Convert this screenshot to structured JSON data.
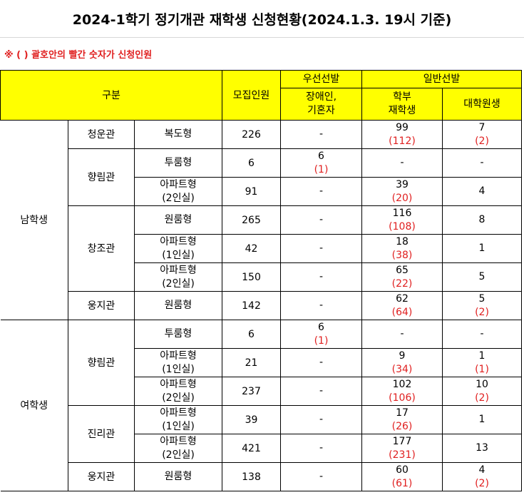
{
  "title": "2024-1학기 정기개관 재학생 신청현황(2024.1.3. 19시 기준)",
  "note": "※ ( ) 괄호안의 빨간 숫자가 신청인원",
  "headers": {
    "category": "구분",
    "capacity": "모집인원",
    "priority": "우선선발",
    "priority_sub": [
      "장애인,",
      "기혼자"
    ],
    "general": "일반선발",
    "undergrad": [
      "학부",
      "재학생"
    ],
    "grad": "대학원생"
  },
  "groups": [
    {
      "gender": "남학생",
      "halls": [
        {
          "hall": "청운관",
          "rows": [
            {
              "type": [
                "복도형"
              ],
              "capacity": "226",
              "priority": "-",
              "priority_applied": "",
              "undergrad": "99",
              "undergrad_applied": "(112)",
              "grad": "7",
              "grad_applied": "(2)"
            }
          ]
        },
        {
          "hall": "향림관",
          "rows": [
            {
              "type": [
                "투룸형"
              ],
              "capacity": "6",
              "priority": "6",
              "priority_applied": "(1)",
              "undergrad": "-",
              "undergrad_applied": "",
              "grad": "-",
              "grad_applied": ""
            },
            {
              "type": [
                "아파트형",
                "(2인실)"
              ],
              "capacity": "91",
              "priority": "-",
              "priority_applied": "",
              "undergrad": "39",
              "undergrad_applied": "(20)",
              "grad": "4",
              "grad_applied": ""
            }
          ]
        },
        {
          "hall": "창조관",
          "rows": [
            {
              "type": [
                "원룸형"
              ],
              "capacity": "265",
              "priority": "-",
              "priority_applied": "",
              "undergrad": "116",
              "undergrad_applied": "(108)",
              "grad": "8",
              "grad_applied": ""
            },
            {
              "type": [
                "아파트형",
                "(1인실)"
              ],
              "capacity": "42",
              "priority": "-",
              "priority_applied": "",
              "undergrad": "18",
              "undergrad_applied": "(38)",
              "grad": "1",
              "grad_applied": ""
            },
            {
              "type": [
                "아파트형",
                "(2인실)"
              ],
              "capacity": "150",
              "priority": "-",
              "priority_applied": "",
              "undergrad": "65",
              "undergrad_applied": "(22)",
              "grad": "5",
              "grad_applied": ""
            }
          ]
        },
        {
          "hall": "웅지관",
          "rows": [
            {
              "type": [
                "원룸형"
              ],
              "capacity": "142",
              "priority": "-",
              "priority_applied": "",
              "undergrad": "62",
              "undergrad_applied": "(64)",
              "grad": "5",
              "grad_applied": "(2)"
            }
          ]
        }
      ]
    },
    {
      "gender": "여학생",
      "halls": [
        {
          "hall": "향림관",
          "rows": [
            {
              "type": [
                "투룸형"
              ],
              "capacity": "6",
              "priority": "6",
              "priority_applied": "(1)",
              "undergrad": "-",
              "undergrad_applied": "",
              "grad": "-",
              "grad_applied": ""
            },
            {
              "type": [
                "아파트형",
                "(1인실)"
              ],
              "capacity": "21",
              "priority": "-",
              "priority_applied": "",
              "undergrad": "9",
              "undergrad_applied": "(34)",
              "grad": "1",
              "grad_applied": "(1)"
            },
            {
              "type": [
                "아파트형",
                "(2인실)"
              ],
              "capacity": "237",
              "priority": "-",
              "priority_applied": "",
              "undergrad": "102",
              "undergrad_applied": "(106)",
              "grad": "10",
              "grad_applied": "(2)"
            }
          ]
        },
        {
          "hall": "진리관",
          "rows": [
            {
              "type": [
                "아파트형",
                "(1인실)"
              ],
              "capacity": "39",
              "priority": "-",
              "priority_applied": "",
              "undergrad": "17",
              "undergrad_applied": "(26)",
              "grad": "1",
              "grad_applied": ""
            },
            {
              "type": [
                "아파트형",
                "(2인실)"
              ],
              "capacity": "421",
              "priority": "-",
              "priority_applied": "",
              "undergrad": "177",
              "undergrad_applied": "(231)",
              "grad": "13",
              "grad_applied": ""
            }
          ]
        },
        {
          "hall": "웅지관",
          "rows": [
            {
              "type": [
                "원룸형"
              ],
              "capacity": "138",
              "priority": "-",
              "priority_applied": "",
              "undergrad": "60",
              "undergrad_applied": "(61)",
              "grad": "4",
              "grad_applied": "(2)"
            }
          ]
        }
      ]
    }
  ]
}
